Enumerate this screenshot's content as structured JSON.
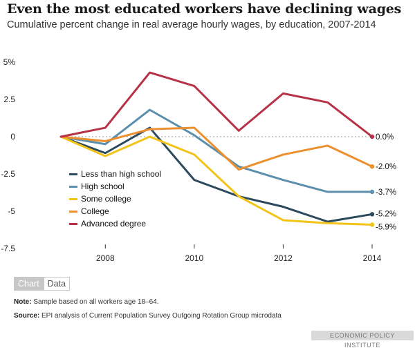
{
  "header": {
    "title": "Even the most educated workers have declining wages",
    "subtitle": "Cumulative percent change in real average hourly wages, by education, 2007-2014"
  },
  "tabs": {
    "chart_label": "Chart",
    "data_label": "Data"
  },
  "footer": {
    "note_label": "Note:",
    "note_text": "Sample based on all workers age 18–64.",
    "source_label": "Source:",
    "source_text": "EPI analysis of Current Population Survey Outgoing Rotation Group microdata",
    "brand": "ECONOMIC POLICY INSTITUTE"
  },
  "chart_data": {
    "type": "line",
    "title": "Even the most educated workers have declining wages",
    "subtitle": "Cumulative percent change in real average hourly wages, by education, 2007-2014",
    "xlabel": "",
    "ylabel": "",
    "x": [
      2007,
      2008,
      2009,
      2010,
      2011,
      2012,
      2013,
      2014
    ],
    "xlim": [
      2007,
      2014
    ],
    "ylim": [
      -7.5,
      5
    ],
    "x_ticks": [
      2008,
      2010,
      2012,
      2014
    ],
    "y_ticks": [
      5,
      2.5,
      0,
      -2.5,
      -5,
      -7.5
    ],
    "y_tick_labels": [
      "5%",
      "2.5",
      "0",
      "-2.5",
      "-5",
      "-7.5"
    ],
    "zero_line": "dotted",
    "grid": false,
    "legend_position": "center-left",
    "series": [
      {
        "name": "Less than high school",
        "color": "#2c4a5e",
        "values": [
          0,
          -1.1,
          0.6,
          -2.9,
          -4.0,
          -4.7,
          -5.7,
          -5.2
        ],
        "end_label": "-5.2%"
      },
      {
        "name": "High school",
        "color": "#5b8fac",
        "values": [
          0,
          -0.5,
          1.8,
          0.1,
          -2.0,
          -2.9,
          -3.7,
          -3.7
        ],
        "end_label": "-3.7%"
      },
      {
        "name": "Some college",
        "color": "#f2c318",
        "values": [
          0,
          -1.3,
          0.0,
          -1.2,
          -4.0,
          -5.6,
          -5.8,
          -5.9
        ],
        "end_label": "-5.9%"
      },
      {
        "name": "College",
        "color": "#ec8f2f",
        "values": [
          0,
          -0.3,
          0.5,
          0.6,
          -2.2,
          -1.2,
          -0.6,
          -2.0
        ],
        "end_label": "-2.0%"
      },
      {
        "name": "Advanced degree",
        "color": "#b83247",
        "values": [
          0,
          0.6,
          4.3,
          3.4,
          0.4,
          2.9,
          2.3,
          0.0
        ],
        "end_label": "0.0%"
      }
    ]
  }
}
